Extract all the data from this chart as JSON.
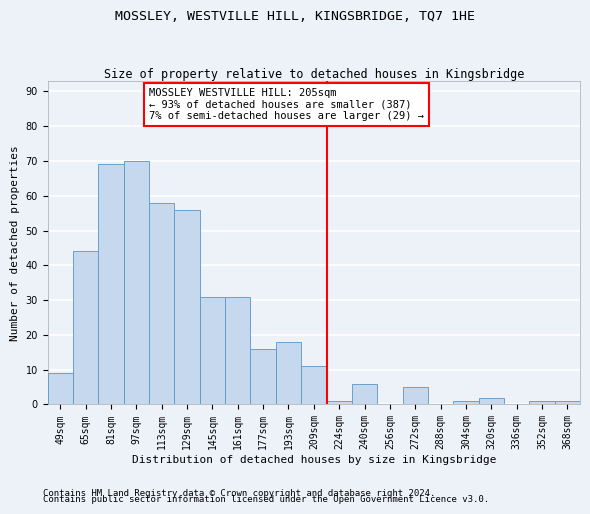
{
  "title": "MOSSLEY, WESTVILLE HILL, KINGSBRIDGE, TQ7 1HE",
  "subtitle": "Size of property relative to detached houses in Kingsbridge",
  "xlabel": "Distribution of detached houses by size in Kingsbridge",
  "ylabel": "Number of detached properties",
  "categories": [
    "49sqm",
    "65sqm",
    "81sqm",
    "97sqm",
    "113sqm",
    "129sqm",
    "145sqm",
    "161sqm",
    "177sqm",
    "193sqm",
    "209sqm",
    "224sqm",
    "240sqm",
    "256sqm",
    "272sqm",
    "288sqm",
    "304sqm",
    "320sqm",
    "336sqm",
    "352sqm",
    "368sqm"
  ],
  "values": [
    9,
    44,
    69,
    70,
    58,
    56,
    31,
    31,
    16,
    18,
    11,
    1,
    6,
    0,
    5,
    0,
    1,
    2,
    0,
    1,
    1
  ],
  "bar_color": "#c5d8ed",
  "bar_edge_color": "#5a96c8",
  "vline_color": "red",
  "vline_x_index": 10,
  "annotation_text": "MOSSLEY WESTVILLE HILL: 205sqm\n← 93% of detached houses are smaller (387)\n7% of semi-detached houses are larger (29) →",
  "annotation_box_facecolor": "white",
  "annotation_box_edgecolor": "red",
  "ylim": [
    0,
    93
  ],
  "yticks": [
    0,
    10,
    20,
    30,
    40,
    50,
    60,
    70,
    80,
    90
  ],
  "footer_line1": "Contains HM Land Registry data © Crown copyright and database right 2024.",
  "footer_line2": "Contains public sector information licensed under the Open Government Licence v3.0.",
  "background_color": "#edf2f9",
  "grid_color": "white",
  "title_fontsize": 9.5,
  "subtitle_fontsize": 8.5,
  "xlabel_fontsize": 8,
  "ylabel_fontsize": 8,
  "tick_fontsize": 7,
  "annotation_fontsize": 7.5,
  "footer_fontsize": 6.5
}
